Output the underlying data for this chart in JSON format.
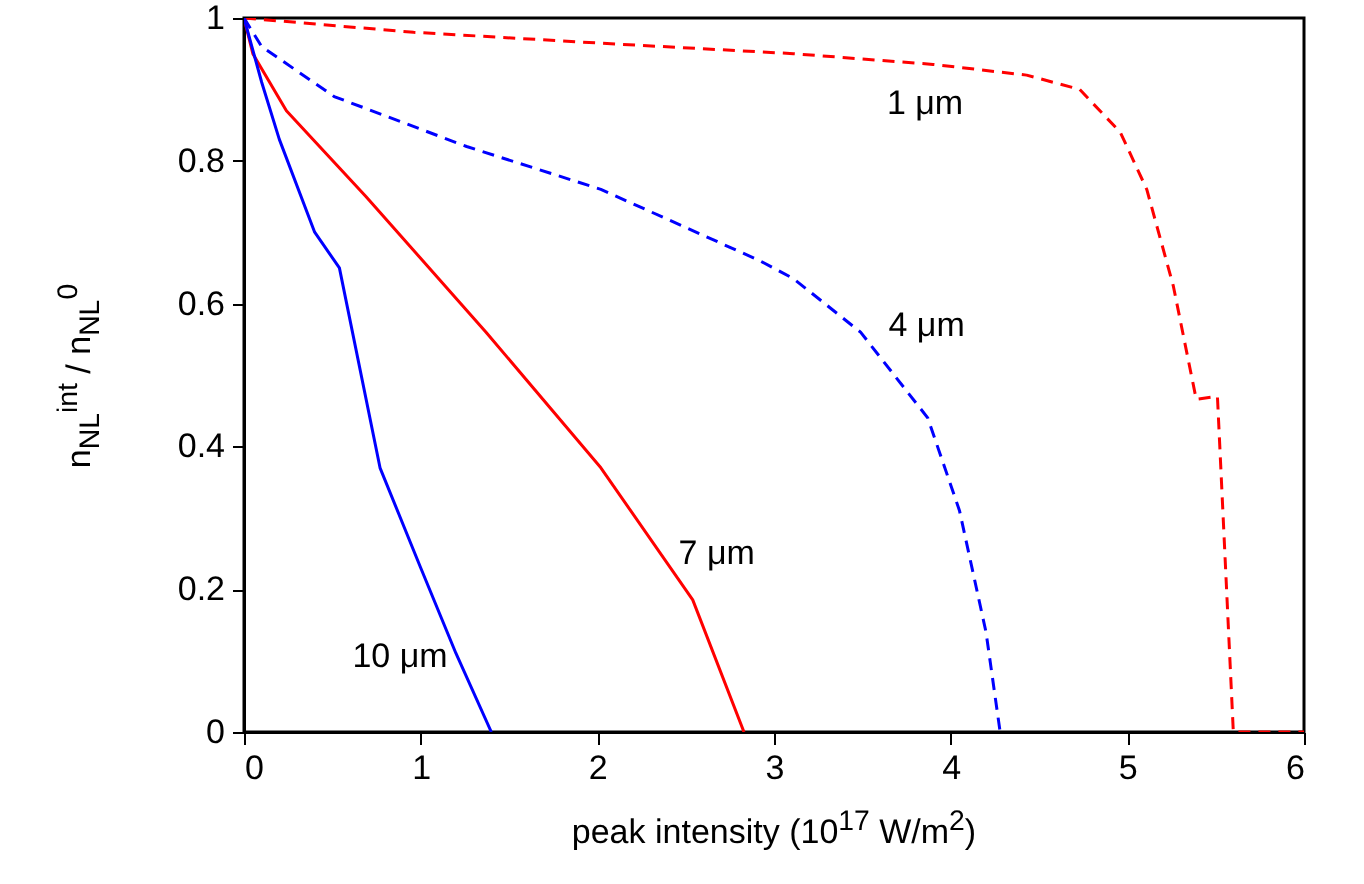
{
  "chart_data": {
    "type": "line",
    "xlabel": "peak intensity (10$^{17}$ W/m$^{2}$)",
    "ylabel": "n$_{NL}$$^{int}$ / n$_{NL}$$^{0}$",
    "xlim": [
      0,
      6
    ],
    "xticks": [
      0,
      1,
      2,
      3,
      4,
      5,
      6
    ],
    "ylim": [
      0,
      1
    ],
    "yticks": [
      0,
      0.2,
      0.4,
      0.6,
      0.8,
      1
    ],
    "grid": false,
    "series": [
      {
        "name": "1 μm",
        "color": "#ff0000",
        "line_style": "dashed",
        "x": [
          0,
          0.96,
          2,
          3.11,
          3.9,
          4.43,
          4.73,
          4.96,
          5.11,
          5.26,
          5.39,
          5.51,
          5.6,
          6
        ],
        "values": [
          1,
          0.98,
          0.965,
          0.95,
          0.935,
          0.92,
          0.9,
          0.84,
          0.76,
          0.625,
          0.466,
          0.47,
          0,
          0
        ]
      },
      {
        "name": "4 μm",
        "color": "#0000ff",
        "line_style": "dashed",
        "x": [
          0,
          0.1,
          0.51,
          1.26,
          2.02,
          2.92,
          3.11,
          3.49,
          3.87,
          4.05,
          4.2,
          4.28
        ],
        "values": [
          1,
          0.96,
          0.89,
          0.82,
          0.76,
          0.66,
          0.635,
          0.56,
          0.44,
          0.31,
          0.14,
          0
        ]
      },
      {
        "name": "7 μm",
        "color": "#ff0000",
        "line_style": "solid",
        "x": [
          0,
          0.05,
          0.24,
          0.69,
          1.37,
          2.02,
          2.54,
          2.83
        ],
        "values": [
          1,
          0.95,
          0.87,
          0.75,
          0.56,
          0.37,
          0.185,
          0
        ]
      },
      {
        "name": "10 μm",
        "color": "#0000ff",
        "line_style": "solid",
        "x": [
          0,
          0.1,
          0.2,
          0.4,
          0.54,
          0.77,
          1.0,
          1.2,
          1.4
        ],
        "values": [
          1,
          0.91,
          0.83,
          0.7,
          0.65,
          0.37,
          0.23,
          0.11,
          0
        ]
      }
    ]
  }
}
